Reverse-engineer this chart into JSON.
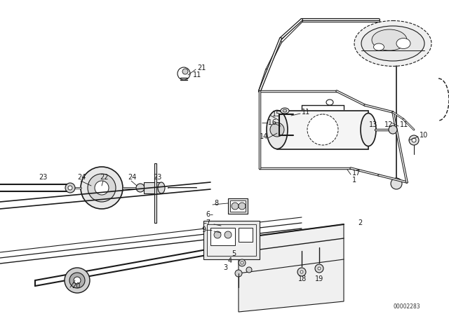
{
  "bg": "#ffffff",
  "lc": "#1a1a1a",
  "fig_w": 6.4,
  "fig_h": 4.48,
  "dpi": 100,
  "watermark": "00002283",
  "fs": 7.0,
  "fs_small": 6.0
}
